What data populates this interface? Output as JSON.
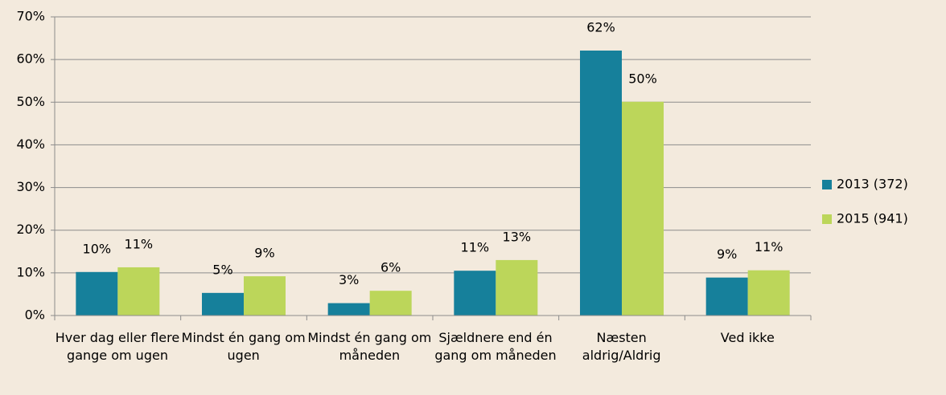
{
  "chart_data": {
    "type": "bar",
    "categories": [
      "Hver dag eller flere gange om ugen",
      "Mindst én gang om ugen",
      "Mindst én gang om måneden",
      "Sjældnere end én gang om måneden",
      "Næsten aldrig/Aldrig",
      "Ved ikke"
    ],
    "series": [
      {
        "name": "2013 (372)",
        "color": "#16809b",
        "values": [
          10.2,
          5.3,
          2.9,
          10.5,
          62.1,
          8.9
        ],
        "value_labels": [
          "10%",
          "5%",
          "3%",
          "11%",
          "62%",
          "9%"
        ]
      },
      {
        "name": "2015 (941)",
        "color": "#bcd65a",
        "values": [
          11.3,
          9.2,
          5.8,
          13.0,
          50.1,
          10.6
        ],
        "value_labels": [
          "11%",
          "9%",
          "6%",
          "13%",
          "50%",
          "11%"
        ]
      }
    ],
    "ylim": [
      0,
      70
    ],
    "yticks": [
      {
        "value": 0,
        "label": "0%"
      },
      {
        "value": 10,
        "label": "10%"
      },
      {
        "value": 20,
        "label": "20%"
      },
      {
        "value": 30,
        "label": "30%"
      },
      {
        "value": 40,
        "label": "40%"
      },
      {
        "value": 50,
        "label": "50%"
      },
      {
        "value": 60,
        "label": "60%"
      },
      {
        "value": 70,
        "label": "70%"
      }
    ],
    "grid": true,
    "legend": "right"
  }
}
